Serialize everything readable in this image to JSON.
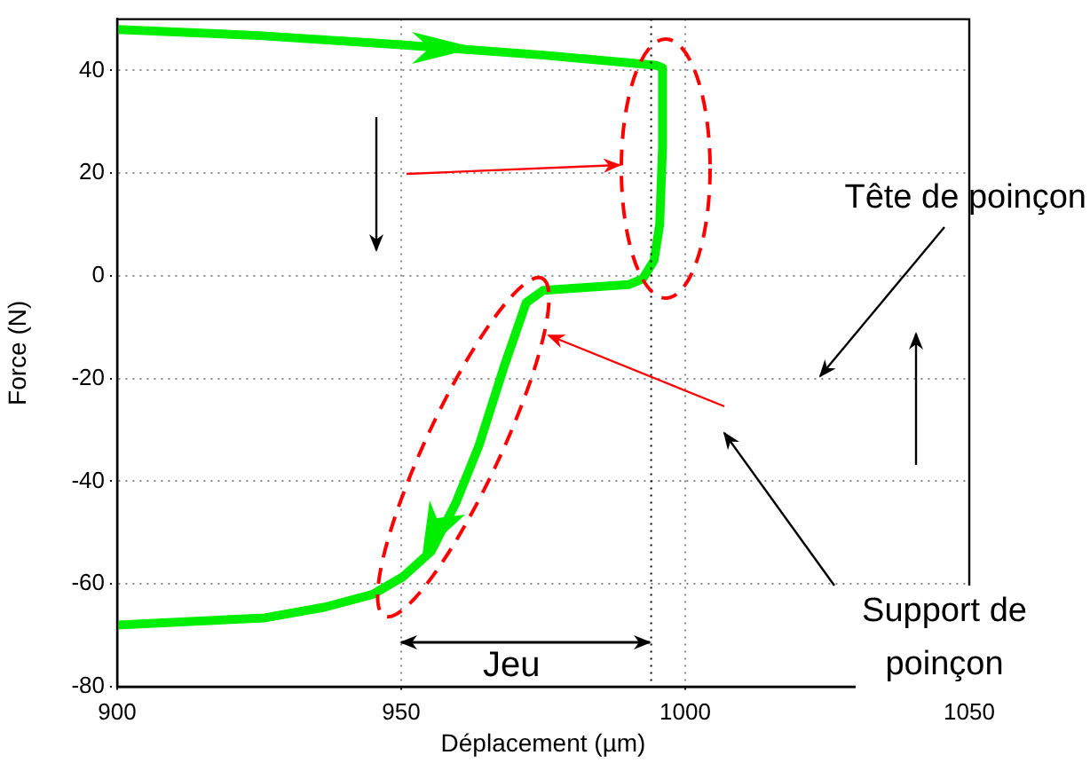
{
  "chart_data": {
    "type": "line",
    "xlabel": "Déplacement (µm)",
    "ylabel": "Force (N)",
    "xlim": [
      900,
      1050
    ],
    "xticks": [
      900,
      950,
      1000,
      1050
    ],
    "ylim": [
      -80,
      50
    ],
    "yticks": [
      -80,
      -60,
      -40,
      -20,
      0,
      20,
      40
    ],
    "grid": true,
    "marker": "none",
    "line_style": "solid",
    "series": [
      {
        "color": "#00ee00",
        "x": [
          900,
          925,
          950,
          975,
          990,
          995,
          996,
          996,
          995.5,
          994.5,
          992.5,
          990,
          975,
          972,
          968,
          963.7,
          959.7,
          955.3,
          950.3,
          945,
          936.6,
          926,
          900
        ],
        "values": [
          48,
          46.8,
          45,
          43,
          41.5,
          41,
          40.5,
          25,
          10,
          3,
          -0.6,
          -1.7,
          -2.8,
          -5.2,
          -18,
          -33,
          -44,
          -53.6,
          -58.6,
          -62,
          -64.5,
          -66.6,
          -68
        ]
      }
    ],
    "ref_lines": [
      {
        "axis": "x",
        "value": 994,
        "color": "#000000",
        "line_style": "dotted"
      }
    ],
    "annotations": [
      "Tête de poinçon",
      "Support de poinçon",
      "Jeu"
    ]
  }
}
